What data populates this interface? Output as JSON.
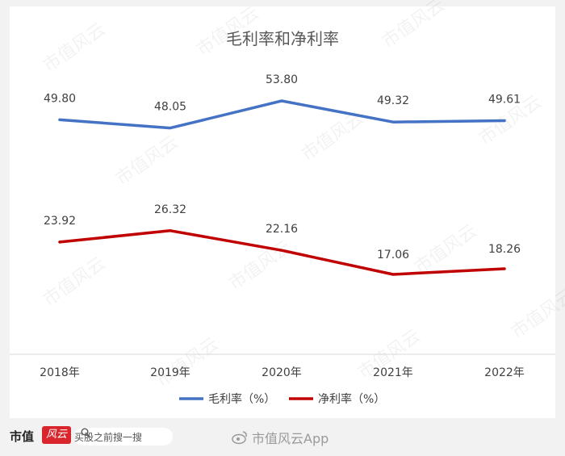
{
  "chart_data": {
    "type": "line",
    "title": "毛利率和净利率",
    "categories": [
      "2018年",
      "2019年",
      "2020年",
      "2021年",
      "2022年"
    ],
    "series": [
      {
        "name": "毛利率（%）",
        "color": "#4472C4",
        "values": [
          49.8,
          48.05,
          53.8,
          49.32,
          49.61
        ],
        "labels": [
          "49.80",
          "48.05",
          "53.80",
          "49.32",
          "49.61"
        ]
      },
      {
        "name": "净利率（%）",
        "color": "#C00000",
        "values": [
          23.92,
          26.32,
          22.16,
          17.06,
          18.26
        ],
        "labels": [
          "23.92",
          "26.32",
          "22.16",
          "17.06",
          "18.26"
        ]
      }
    ],
    "ylim": [
      0,
      60
    ],
    "grid": false,
    "legend": "bottom"
  },
  "watermark": "市值风云",
  "footer": {
    "brand": "市值",
    "brand_logo_text": "风云",
    "search_placeholder": "买股之前搜一搜",
    "weibo_text": "市值风云App"
  }
}
